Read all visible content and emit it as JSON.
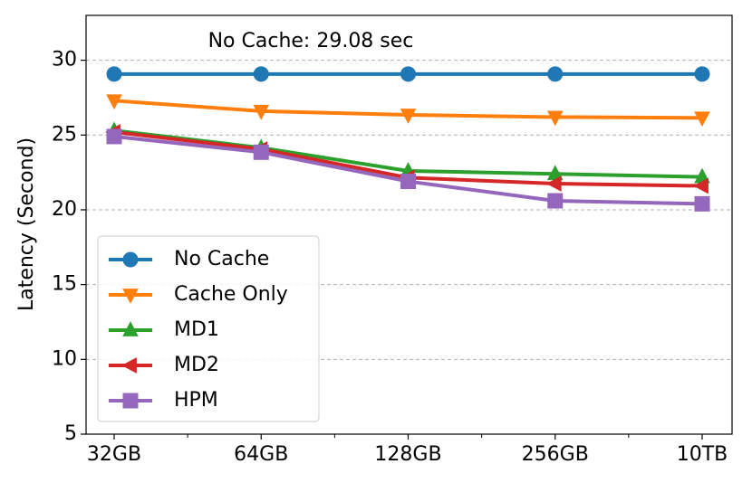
{
  "chart_data": {
    "type": "line",
    "annotation": "No Cache: 29.08 sec",
    "ylabel": "Latency (Second)",
    "categories": [
      "32GB",
      "64GB",
      "128GB",
      "256GB",
      "10TB"
    ],
    "series": [
      {
        "name": "No Cache",
        "color": "#1f77b4",
        "marker": "circle",
        "values": [
          29.08,
          29.08,
          29.08,
          29.08,
          29.08
        ]
      },
      {
        "name": "Cache Only",
        "color": "#ff7f0e",
        "marker": "triangle-down",
        "values": [
          27.3,
          26.6,
          26.35,
          26.2,
          26.15
        ]
      },
      {
        "name": "MD1",
        "color": "#2ca02c",
        "marker": "triangle-up",
        "values": [
          25.3,
          24.15,
          22.6,
          22.4,
          22.2
        ]
      },
      {
        "name": "MD2",
        "color": "#d62728",
        "marker": "triangle-left",
        "values": [
          25.2,
          24.05,
          22.15,
          21.75,
          21.6
        ]
      },
      {
        "name": "HPM",
        "color": "#9467bd",
        "marker": "square",
        "values": [
          24.9,
          23.85,
          21.9,
          20.6,
          20.4
        ]
      }
    ],
    "ylim": [
      5,
      33
    ],
    "yticks": [
      5,
      10,
      15,
      20,
      25,
      30
    ],
    "grid": true,
    "legend": "lower left"
  }
}
